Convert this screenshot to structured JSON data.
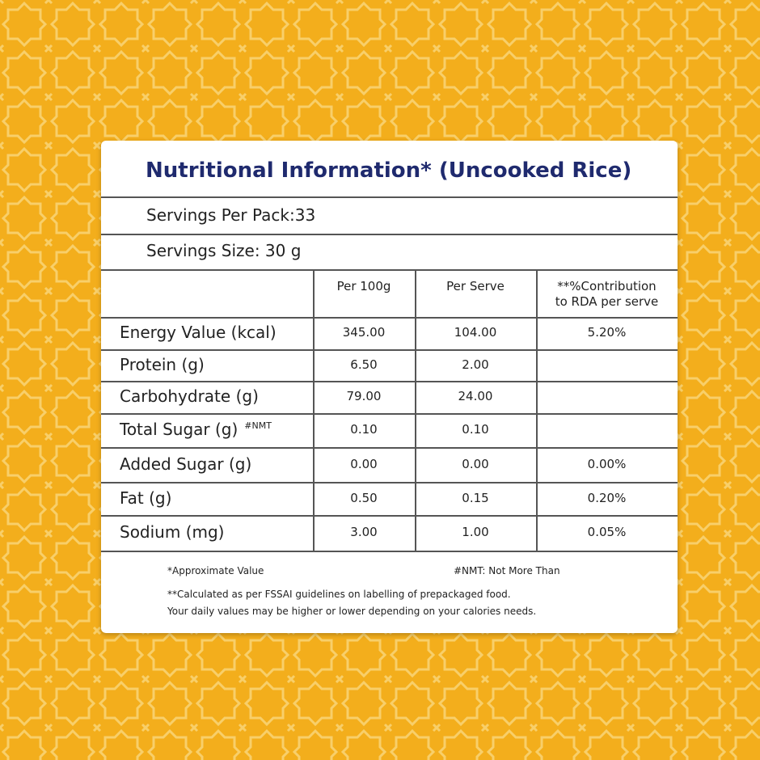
{
  "title": "Nutritional Information* (Uncooked Rice)",
  "servings_per_pack": "Servings Per Pack:33",
  "serving_size": "Servings Size: 30 g",
  "table": {
    "header": {
      "per_100g": "Per 100g",
      "per_serve": "Per Serve",
      "rda": [
        "**%Contribution",
        "to RDA per serve"
      ]
    },
    "rows": [
      {
        "label": "Energy Value (kcal)",
        "per_100g": "345.00",
        "per_serve": "104.00",
        "rda": "5.20%"
      },
      {
        "label": "Protein (g)",
        "per_100g": "6.50",
        "per_serve": "2.00"
      },
      {
        "label": "Carbohydrate (g)",
        "per_100g": "79.00",
        "per_serve": "24.00"
      },
      {
        "label": "Total Sugar (g)",
        "note": "#NMT",
        "per_100g": "0.10",
        "per_serve": "0.10"
      },
      {
        "label": "Added Sugar (g)",
        "per_100g": "0.00",
        "per_serve": "0.00",
        "rda": "0.00%"
      },
      {
        "label": "Fat (g)",
        "per_100g": "0.50",
        "per_serve": "0.15",
        "rda": "0.20%"
      },
      {
        "label": "Sodium (mg)",
        "per_100g": "3.00",
        "per_serve": "1.00",
        "rda": "0.05%"
      }
    ]
  },
  "footnotes": {
    "approx": "*Approximate Value",
    "nmt": "#NMT: Not More Than",
    "fssai": [
      "**Calculated as per FSSAI guidelines on labelling of prepackaged food.",
      "Your daily values may be higher or lower depending on your calories needs."
    ]
  }
}
